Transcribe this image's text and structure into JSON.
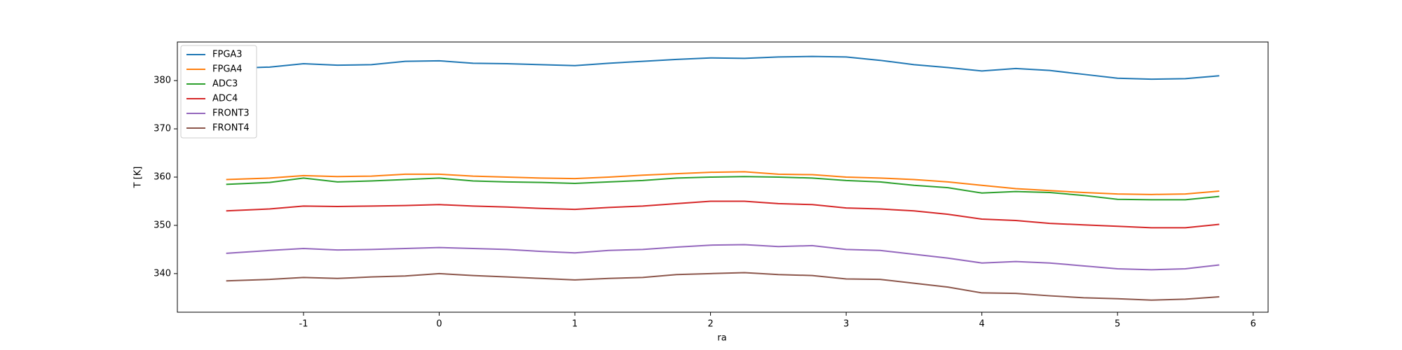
{
  "chart_data": {
    "type": "line",
    "x_label": "ra",
    "y_label": "T [K]",
    "x": [
      -1.57,
      -1.25,
      -1,
      -0.75,
      -0.5,
      -0.25,
      0,
      0.25,
      0.5,
      0.75,
      1,
      1.25,
      1.5,
      1.75,
      2,
      2.25,
      2.5,
      2.75,
      3,
      3.25,
      3.5,
      3.75,
      4,
      4.25,
      4.5,
      4.75,
      5,
      5.25,
      5.5,
      5.75
    ],
    "series": [
      {
        "name": "FPGA3",
        "color": "#1f77b4",
        "values": [
          382.5,
          382.8,
          383.5,
          383.2,
          383.3,
          384,
          384.1,
          383.6,
          383.5,
          383.3,
          383.1,
          383.6,
          384,
          384.4,
          384.7,
          384.6,
          384.9,
          385,
          384.9,
          384.2,
          383.3,
          382.7,
          382,
          382.5,
          382.1,
          381.3,
          380.5,
          380.3,
          380.4,
          381
        ]
      },
      {
        "name": "FPGA4",
        "color": "#ff7f0e",
        "values": [
          359.5,
          359.8,
          360.3,
          360.1,
          360.2,
          360.6,
          360.6,
          360.2,
          360,
          359.8,
          359.7,
          360,
          360.4,
          360.7,
          361,
          361.1,
          360.6,
          360.5,
          360,
          359.8,
          359.5,
          359,
          358.3,
          357.6,
          357.2,
          356.8,
          356.5,
          356.4,
          356.5,
          357.1
        ]
      },
      {
        "name": "ADC3",
        "color": "#2ca02c",
        "values": [
          358.5,
          358.9,
          359.8,
          359,
          359.2,
          359.5,
          359.8,
          359.2,
          359,
          358.9,
          358.7,
          359,
          359.3,
          359.8,
          360,
          360.1,
          360,
          359.8,
          359.3,
          359,
          358.3,
          357.8,
          356.7,
          357,
          356.8,
          356.2,
          355.4,
          355.3,
          355.3,
          356
        ]
      },
      {
        "name": "ADC4",
        "color": "#d62728",
        "values": [
          353,
          353.4,
          354,
          353.9,
          354,
          354.1,
          354.3,
          354,
          353.8,
          353.5,
          353.3,
          353.7,
          354,
          354.5,
          355,
          355,
          354.5,
          354.3,
          353.6,
          353.4,
          353,
          352.3,
          351.3,
          351,
          350.4,
          350.1,
          349.8,
          349.5,
          349.5,
          350.2
        ]
      },
      {
        "name": "FRONT3",
        "color": "#9467bd",
        "values": [
          344.2,
          344.8,
          345.2,
          344.9,
          345,
          345.2,
          345.4,
          345.2,
          345,
          344.6,
          344.3,
          344.8,
          345,
          345.5,
          345.9,
          346,
          345.6,
          345.8,
          345,
          344.8,
          344,
          343.2,
          342.2,
          342.5,
          342.2,
          341.6,
          341,
          340.8,
          341,
          341.8
        ]
      },
      {
        "name": "FRONT4",
        "color": "#8c564b",
        "values": [
          338.5,
          338.8,
          339.2,
          339,
          339.3,
          339.5,
          340,
          339.6,
          339.3,
          339,
          338.7,
          339,
          339.2,
          339.8,
          340,
          340.2,
          339.8,
          339.6,
          338.9,
          338.8,
          338,
          337.2,
          336,
          335.9,
          335.4,
          335,
          334.8,
          334.5,
          334.7,
          335.2
        ]
      }
    ],
    "xlim": [
      -1.93,
      6.11
    ],
    "xticks": [
      -1,
      0,
      1,
      2,
      3,
      4,
      5,
      6
    ],
    "ylim": [
      332,
      388
    ],
    "yticks": [
      340,
      350,
      360,
      370,
      380
    ],
    "legend": "upper left"
  }
}
